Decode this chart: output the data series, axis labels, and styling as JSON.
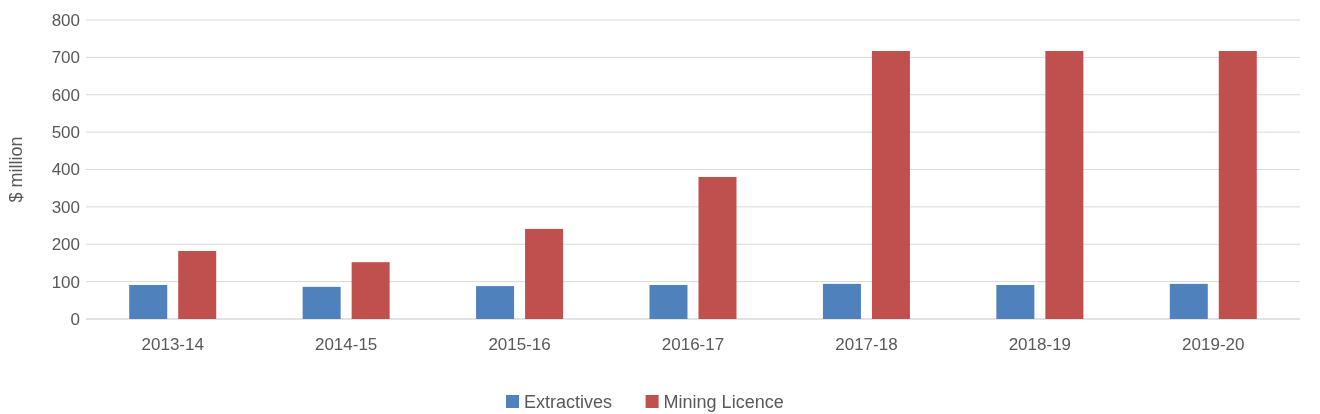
{
  "chart_data": {
    "type": "bar",
    "ylabel": "$ million",
    "categories": [
      "2013-14",
      "2014-15",
      "2015-16",
      "2016-17",
      "2017-18",
      "2018-19",
      "2019-20"
    ],
    "series": [
      {
        "name": "Extractives",
        "color": "#4f81bd",
        "values": [
          91,
          86,
          88,
          91,
          94,
          91,
          94
        ]
      },
      {
        "name": "Mining Licence",
        "color": "#c0504d",
        "values": [
          182,
          152,
          241,
          380,
          717,
          717,
          717
        ]
      }
    ],
    "ylim": [
      0,
      800
    ],
    "yticks": [
      0,
      100,
      200,
      300,
      400,
      500,
      600,
      700,
      800
    ],
    "grid": "y",
    "legend": "bottom"
  }
}
